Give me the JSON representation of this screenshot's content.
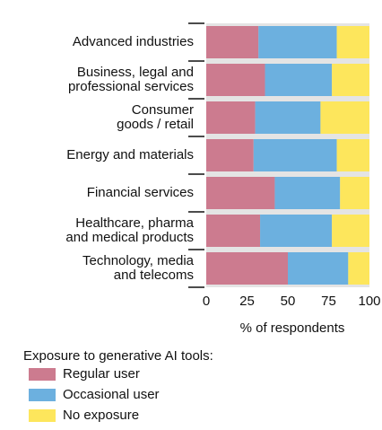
{
  "chart_data": {
    "type": "stacked-bar",
    "categories": [
      "Advanced industries",
      "Business, legal and\nprofessional services",
      "Consumer\ngoods / retail",
      "Energy and materials",
      "Financial services",
      "Healthcare, pharma\nand medical products",
      "Technology, media\nand telecoms"
    ],
    "series": [
      {
        "name": "Regular user",
        "color": "#cc7b8f",
        "values": [
          32,
          36,
          30,
          29,
          42,
          33,
          50
        ]
      },
      {
        "name": "Occasional user",
        "color": "#6cb0df",
        "values": [
          48,
          41,
          40,
          51,
          40,
          44,
          37
        ]
      },
      {
        "name": "No exposure",
        "color": "#fde65c",
        "values": [
          20,
          23,
          30,
          20,
          18,
          23,
          13
        ]
      }
    ],
    "xlim": [
      0,
      100
    ],
    "xticks": [
      0,
      25,
      50,
      75,
      100
    ],
    "xlabel": "% of respondents",
    "legend_title": "Exposure to generative AI tools:"
  }
}
